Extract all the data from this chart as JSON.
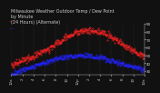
{
  "title": "Milwaukee Weather Outdoor Temp / Dew Point\nby Minute\n(24 Hours) (Alternate)",
  "bg_color": "#111111",
  "plot_bg_color": "#111111",
  "grid_color": "#555555",
  "temp_color": "#ff2222",
  "dew_color": "#2222ff",
  "legend_temp_color": "#ff2222",
  "legend_dew_color": "#2222ff",
  "text_color": "#cccccc",
  "ylim": [
    25,
    90
  ],
  "xlim": [
    0,
    1440
  ],
  "yticks": [
    30,
    40,
    50,
    60,
    70,
    80,
    90
  ],
  "title_fontsize": 3.5,
  "tick_fontsize": 3.0,
  "n_minutes": 1440,
  "markersize": 0.7,
  "dot_step": 4
}
